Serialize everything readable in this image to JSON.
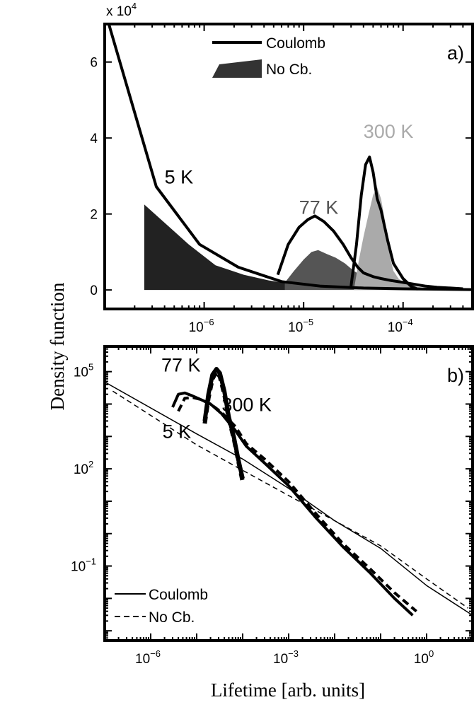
{
  "figure": {
    "ylabel": "Density function",
    "xlabel": "Lifetime [arb. units]"
  },
  "chart_data": [
    {
      "panel": "a)",
      "type": "line",
      "x_scale": "log",
      "y_scale": "linear",
      "y_multiplier": "x 10",
      "y_multiplier_exp": "4",
      "xlim": [
        1e-07,
        0.0005
      ],
      "ylim": [
        -0.5,
        7
      ],
      "xticks": [
        {
          "value": 1e-06,
          "base": "10",
          "exp": "−6"
        },
        {
          "value": 1e-05,
          "base": "10",
          "exp": "−5"
        },
        {
          "value": 0.0001,
          "base": "10",
          "exp": "−4"
        }
      ],
      "yticks": [
        {
          "value": 0,
          "label": "0"
        },
        {
          "value": 2,
          "label": "2"
        },
        {
          "value": 4,
          "label": "4"
        },
        {
          "value": 6,
          "label": "6"
        }
      ],
      "legend": {
        "position": "top-center",
        "entries": [
          {
            "label": "Coulomb",
            "style": "line"
          },
          {
            "label": "No Cb.",
            "style": "filled"
          }
        ]
      },
      "annotations": [
        {
          "text": "5 K",
          "x": 4e-07,
          "y": 2.8,
          "color": "#000000"
        },
        {
          "text": "77 K",
          "x": 9e-06,
          "y": 2.0,
          "color": "#555555"
        },
        {
          "text": "300 K",
          "x": 4e-05,
          "y": 4.0,
          "color": "#aaaaaa"
        }
      ],
      "filled_series": [
        {
          "name": "No Cb. 5 K",
          "color": "#222222",
          "x": [
            2.5e-07,
            2.5e-07,
            7e-07,
            1.3e-06,
            2.5e-06,
            4.5e-06,
            6.5e-06,
            6.5e-06
          ],
          "y": [
            0,
            2.25,
            1.2,
            0.65,
            0.4,
            0.25,
            0.18,
            0
          ]
        },
        {
          "name": "No Cb. 77 K",
          "color": "#555555",
          "x": [
            6.5e-06,
            8e-06,
            1e-05,
            1.2e-05,
            1.4e-05,
            1.7e-05,
            2.1e-05,
            2.6e-05,
            3.2e-05,
            4e-05,
            5e-05,
            6.5e-05,
            8e-05,
            0.0001,
            0.00013,
            0.00017,
            0.00022
          ],
          "y": [
            0.2,
            0.5,
            0.8,
            1.0,
            1.05,
            0.95,
            0.85,
            0.7,
            0.5,
            0.35,
            0.25,
            0.17,
            0.12,
            0.09,
            0.06,
            0.04,
            0
          ]
        },
        {
          "name": "No Cb. 300 K",
          "color": "#aaaaaa",
          "x": [
            3.2e-05,
            3.6e-05,
            4e-05,
            4.5e-05,
            5e-05,
            5.5e-05,
            6e-05,
            6.5e-05,
            7e-05,
            7.5e-05,
            8e-05,
            9e-05,
            0.0001,
            0.00012,
            0.00015,
            0.0002,
            0.00028
          ],
          "y": [
            0,
            0.8,
            1.4,
            2.0,
            2.5,
            2.7,
            2.4,
            1.9,
            1.3,
            0.8,
            0.5,
            0.3,
            0.2,
            0.12,
            0.07,
            0.04,
            0
          ]
        }
      ],
      "line_series": [
        {
          "name": "Coulomb 5 K",
          "color": "#000000",
          "width": 4,
          "x": [
            1.1e-07,
            3.3e-07,
            9e-07,
            2.2e-06,
            6e-06,
            1.5e-05,
            4e-05,
            0.0001,
            0.0005
          ],
          "y": [
            7.0,
            2.72,
            1.2,
            0.6,
            0.22,
            0.1,
            0.05,
            0.03,
            0.01
          ]
        },
        {
          "name": "Coulomb 77 K",
          "color": "#000000",
          "width": 4,
          "x": [
            5.5e-06,
            7e-06,
            9e-06,
            1.1e-05,
            1.3e-05,
            1.6e-05,
            2e-05,
            2.5e-05,
            3e-05,
            3.5e-05,
            4e-05,
            5e-05,
            6e-05,
            7.5e-05,
            0.0001,
            0.00013,
            0.00017,
            0.00022,
            0.0003,
            0.0004
          ],
          "y": [
            0.4,
            1.2,
            1.65,
            1.85,
            1.95,
            1.8,
            1.55,
            1.2,
            0.85,
            0.6,
            0.45,
            0.35,
            0.3,
            0.25,
            0.2,
            0.15,
            0.1,
            0.07,
            0.05,
            0.03
          ]
        },
        {
          "name": "Coulomb 300 K",
          "color": "#000000",
          "width": 4,
          "x": [
            3e-05,
            3.4e-05,
            3.8e-05,
            4.2e-05,
            4.6e-05,
            5e-05,
            5.5e-05,
            6e-05,
            7e-05,
            8e-05,
            0.0001,
            0.00012,
            0.00014
          ],
          "y": [
            0.1,
            1.2,
            2.5,
            3.3,
            3.5,
            3.1,
            2.4,
            2.1,
            1.3,
            0.7,
            0.3,
            0.1,
            0.02
          ]
        }
      ]
    },
    {
      "panel": "b)",
      "type": "line",
      "x_scale": "log",
      "y_scale": "log",
      "xlim": [
        1e-07,
        10
      ],
      "ylim": [
        0.0005,
        600000
      ],
      "xticks": [
        {
          "value": 1e-06,
          "base": "10",
          "exp": "−6"
        },
        {
          "value": 0.001,
          "base": "10",
          "exp": "−3"
        },
        {
          "value": 1,
          "base": "10",
          "exp": "0"
        }
      ],
      "yticks": [
        {
          "value": 0.1,
          "base": "10",
          "exp": "−1"
        },
        {
          "value": 100,
          "base": "10",
          "exp": "2"
        },
        {
          "value": 100000,
          "base": "10",
          "exp": "5"
        }
      ],
      "legend": {
        "position": "bottom-left",
        "entries": [
          {
            "label": "Coulomb",
            "style": "solid"
          },
          {
            "label": "No Cb.",
            "style": "dashed"
          }
        ]
      },
      "annotations": [
        {
          "text": "77 K",
          "x": 1.7e-06,
          "y": 100000,
          "color": "#000000"
        },
        {
          "text": "300 K",
          "x": 3.5e-05,
          "y": 6000,
          "color": "#000000"
        },
        {
          "text": "5 K",
          "x": 1.8e-06,
          "y": 900,
          "color": "#000000"
        }
      ],
      "series": [
        {
          "name": "Coulomb 5 K",
          "dash": false,
          "width": 1.5,
          "x": [
            1e-07,
            1e-05,
            0.0001,
            0.001,
            0.01,
            0.1,
            1,
            10
          ],
          "y": [
            48000,
            1200,
            200,
            25,
            2.5,
            0.35,
            0.025,
            0.003
          ]
        },
        {
          "name": "No Cb. 5 K",
          "dash": true,
          "width": 1.5,
          "x": [
            1.5e-07,
            1e-05,
            0.0001,
            0.001,
            0.01,
            0.1,
            1,
            8
          ],
          "y": [
            25000,
            550,
            90,
            15,
            2.5,
            0.42,
            0.04,
            0.005
          ]
        },
        {
          "name": "Coulomb 77 K",
          "dash": false,
          "width": 4,
          "x": [
            3e-06,
            4e-06,
            5.5e-06,
            8e-06,
            1.2e-05,
            2e-05,
            3.5e-05,
            7e-05,
            0.00012,
            0.0003,
            0.001,
            0.004,
            0.015,
            0.06,
            0.2,
            0.5
          ],
          "y": [
            8000,
            20000,
            22000,
            18000,
            14000,
            10000,
            5000,
            1500,
            500,
            150,
            30,
            3,
            0.4,
            0.06,
            0.01,
            0.003
          ]
        },
        {
          "name": "No Cb. 77 K",
          "dash": true,
          "width": 4,
          "x": [
            4e-06,
            5.5e-06,
            8e-06,
            1.2e-05,
            2e-05,
            3.5e-05,
            7e-05,
            0.00012,
            0.0003,
            0.001,
            0.004,
            0.015,
            0.06,
            0.2,
            0.6
          ],
          "y": [
            6000,
            15000,
            16000,
            14000,
            10000,
            5500,
            2000,
            600,
            200,
            40,
            4,
            0.5,
            0.08,
            0.015,
            0.004
          ]
        },
        {
          "name": "Coulomb 300 K",
          "dash": false,
          "width": 6,
          "x": [
            1.5e-05,
            1.8e-05,
            2.2e-05,
            2.7e-05,
            3.2e-05,
            4e-05,
            5e-05,
            6.5e-05,
            8e-05,
            0.0001
          ],
          "y": [
            3000,
            20000,
            80000,
            120000,
            90000,
            25000,
            4000,
            900,
            200,
            50
          ]
        },
        {
          "name": "No Cb. 300 K",
          "dash": true,
          "width": 6,
          "x": [
            1.5e-05,
            1.8e-05,
            2.2e-05,
            2.7e-05,
            3.2e-05,
            4e-05,
            5e-05,
            6.5e-05,
            8e-05,
            0.0001
          ],
          "y": [
            2500,
            15000,
            60000,
            100000,
            70000,
            20000,
            3500,
            800,
            180,
            40
          ]
        }
      ]
    }
  ]
}
